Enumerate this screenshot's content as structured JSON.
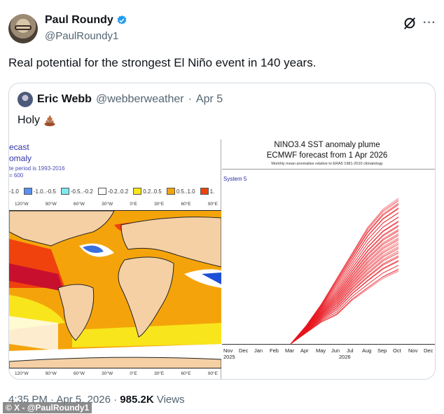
{
  "author": {
    "display_name": "Paul Roundy",
    "handle": "@PaulRoundy1",
    "verified": true
  },
  "actions": {
    "grok_icon": "grok-icon",
    "more_label": "···"
  },
  "tweet": {
    "text": "Real potential for the strongest El Niño event in 140 years."
  },
  "quoted": {
    "display_name": "Eric Webb",
    "handle": "@webberweather",
    "separator": "·",
    "date": "Apr 5",
    "text": "Holy",
    "emoji": "pile-of-poo"
  },
  "map_image": {
    "title_line1": "ecast",
    "title_line2": "omaly",
    "note1": "te period is 1993-2016",
    "note2": "= 600",
    "legend": [
      {
        "label": "-1.0",
        "color": null
      },
      {
        "label": "-1.0..-0.5",
        "color": "#5b8ff0"
      },
      {
        "label": "-0.5..-0.2",
        "color": "#7fe8f0"
      },
      {
        "label": "-0.2..0.2",
        "color": "#ffffff"
      },
      {
        "label": "0.2..0.5",
        "color": "#f8e51c"
      },
      {
        "label": "0.5..1.0",
        "color": "#f4a40a"
      },
      {
        "label": "1.",
        "color": "#f0420c"
      }
    ],
    "longitudes": [
      "120°W",
      "90°W",
      "60°W",
      "30°W",
      "0°E",
      "30°E",
      "60°E",
      "90°E"
    ]
  },
  "chart_data": {
    "type": "line",
    "title": "NINO3.4 SST anomaly plume",
    "subtitle": "ECMWF forecast from 1 Apr 2026",
    "note": "Monthly mean anomalies relative to ERA5 1981-2010 climatology",
    "label": "System 5",
    "x": [
      "Nov",
      "Dec",
      "Jan",
      "Feb",
      "Mar",
      "Apr",
      "May",
      "Jun",
      "Jul",
      "Aug",
      "Sep",
      "Oct",
      "Nov",
      "Dec"
    ],
    "year_labels": [
      {
        "label": "2025",
        "at": "Nov"
      },
      {
        "label": "2026",
        "at": "Jun/Jul"
      }
    ],
    "series_color": "#e8141e",
    "ensemble_members": 51,
    "grid": false,
    "series_summary": {
      "months": [
        "Mar",
        "Apr",
        "May",
        "Jun",
        "Jul",
        "Aug",
        "Sep",
        "Oct"
      ],
      "max": [
        0.0,
        0.5,
        1.1,
        1.8,
        2.5,
        3.2,
        3.7,
        4.0
      ],
      "mean": [
        0.0,
        0.4,
        0.9,
        1.4,
        1.9,
        2.3,
        2.6,
        2.9
      ],
      "min": [
        0.0,
        0.3,
        0.6,
        0.8,
        1.2,
        1.5,
        1.8,
        2.0
      ]
    }
  },
  "footer": {
    "time": "4:35 PM",
    "sep": "·",
    "date": "Apr 5, 2026",
    "views_count": "985.2K",
    "views_label": "Views"
  },
  "watermark": "© X - @PaulRoundy1"
}
